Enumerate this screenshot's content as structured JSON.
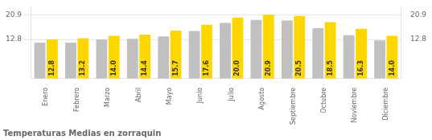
{
  "chart_data": {
    "type": "bar",
    "title": "Temperaturas Medias en zorraquin",
    "categories": [
      "Enero",
      "Febrero",
      "Marzo",
      "Abril",
      "Mayo",
      "Junio",
      "Julio",
      "Agosto",
      "Septiembre",
      "Octubre",
      "Noviembre",
      "Diciembre"
    ],
    "series": [
      {
        "color": "#C0C0C0",
        "values": [
          11.8,
          11.8,
          12.8,
          13.0,
          13.8,
          15.6,
          18.2,
          19.2,
          19.0,
          16.5,
          14.2,
          12.5
        ]
      },
      {
        "color": "#FFD700",
        "values": [
          12.8,
          13.2,
          14.0,
          14.4,
          15.7,
          17.6,
          20.0,
          20.9,
          20.5,
          18.5,
          16.3,
          14.0
        ],
        "data_labels": true,
        "value_labels": [
          "12.8",
          "13.2",
          "14.0",
          "14.4",
          "15.7",
          "17.6",
          "20.0",
          "20.9",
          "20.5",
          "18.5",
          "16.3",
          "14.0"
        ]
      }
    ],
    "ylim": [
      0,
      23.5
    ],
    "yticks": [
      12.8,
      20.9
    ],
    "y2lim": [
      0,
      23.5
    ],
    "y2ticks": [
      12.8,
      20.9
    ],
    "grid": true
  }
}
